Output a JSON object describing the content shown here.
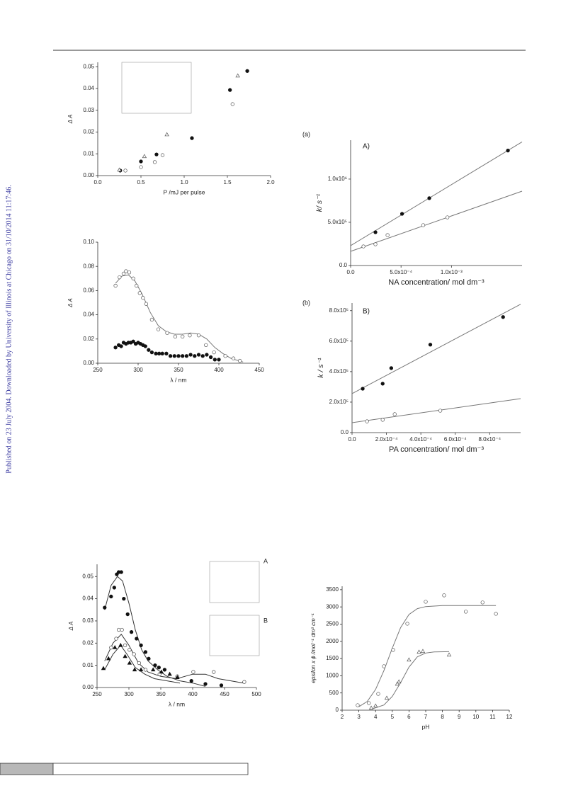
{
  "side_note": "Published on 23 July 2004. Downloaded by University of Illinois at Chicago on 31/10/2014 11:17:46.",
  "chart_data": [
    {
      "type": "scatter",
      "x_label": "P /mJ per pulse",
      "y_label": "Δ A",
      "box": false,
      "xlim": [
        0,
        2.0
      ],
      "ylim": [
        0,
        0.052
      ],
      "xticks": [
        {
          "value": 0,
          "label": "0.0"
        },
        0.5,
        {
          "value": 1,
          "label": "1.0"
        },
        1.5,
        {
          "value": 2,
          "label": "2.0"
        }
      ],
      "yticks": [
        {
          "value": 0,
          "label": "0.00"
        },
        0.01,
        0.02,
        0.03,
        0.04,
        0.05
      ],
      "series": [
        {
          "marker": "filled-circle",
          "color": "#111111",
          "x": [
            0.26,
            0.5,
            0.68,
            1.09,
            1.53,
            1.73
          ],
          "values": [
            0.0023,
            0.0065,
            0.0097,
            0.0172,
            0.0393,
            0.048
          ]
        },
        {
          "marker": "open-circle",
          "color": "#555555",
          "x": [
            0.32,
            0.5,
            0.66,
            0.75,
            1.56
          ],
          "values": [
            0.0023,
            0.0039,
            0.0062,
            0.0094,
            0.0328
          ]
        },
        {
          "marker": "open-triangle",
          "color": "#555555",
          "x": [
            0.25,
            0.54,
            0.8,
            1.62
          ],
          "values": [
            0.0026,
            0.0088,
            0.0188,
            0.0458
          ]
        }
      ]
    },
    {
      "type": "scatter",
      "x_label": "λ / nm",
      "y_label": "Δ A",
      "box": false,
      "xlim": [
        250,
        450
      ],
      "ylim": [
        0,
        0.1
      ],
      "xticks": [
        250,
        300,
        350,
        400,
        450
      ],
      "yticks": [
        {
          "value": 0,
          "label": "0.00"
        },
        0.02,
        0.04,
        0.06,
        0.08,
        {
          "value": 0.1,
          "label": "0.10"
        }
      ],
      "series": [
        {
          "marker": "line",
          "color": "#777777",
          "x": [
            272,
            280,
            288,
            296,
            305,
            315,
            325,
            335,
            345,
            355,
            365,
            375,
            385,
            395,
            405,
            415,
            425,
            430
          ],
          "values": [
            0.066,
            0.072,
            0.073,
            0.068,
            0.057,
            0.042,
            0.031,
            0.026,
            0.024,
            0.024,
            0.025,
            0.024,
            0.02,
            0.013,
            0.008,
            0.004,
            0.002,
            0.001
          ]
        },
        {
          "marker": "open-circle",
          "color": "#555555",
          "x": [
            272,
            277,
            282,
            285,
            289,
            294,
            298,
            302,
            306,
            310,
            317,
            325,
            336,
            346,
            355,
            364,
            375,
            384,
            394,
            408,
            418,
            426
          ],
          "values": [
            0.064,
            0.071,
            0.074,
            0.076,
            0.075,
            0.07,
            0.064,
            0.058,
            0.054,
            0.049,
            0.036,
            0.028,
            0.025,
            0.022,
            0.022,
            0.023,
            0.023,
            0.015,
            0.009,
            0.006,
            0.004,
            0.002
          ]
        },
        {
          "marker": "filled-circle",
          "color": "#111111",
          "x": [
            272,
            276,
            279,
            282,
            285,
            288,
            291,
            294,
            297,
            300,
            303,
            306,
            309,
            313,
            317,
            322,
            326,
            330,
            335,
            340,
            345,
            350,
            355,
            360,
            365,
            370,
            375,
            380,
            385,
            390,
            395,
            400
          ],
          "values": [
            0.013,
            0.015,
            0.014,
            0.017,
            0.016,
            0.017,
            0.017,
            0.018,
            0.016,
            0.017,
            0.016,
            0.015,
            0.014,
            0.011,
            0.009,
            0.008,
            0.008,
            0.008,
            0.008,
            0.006,
            0.006,
            0.006,
            0.006,
            0.006,
            0.007,
            0.006,
            0.007,
            0.006,
            0.007,
            0.005,
            0.003,
            0.003
          ]
        }
      ]
    },
    {
      "type": "scatter",
      "tag": "(a)",
      "panel": "A)",
      "x_label": "NA concentration/ mol dm⁻³",
      "y_label": "k/ s⁻¹",
      "box": false,
      "xlim": [
        0,
        0.0017
      ],
      "ylim": [
        0,
        1450000
      ],
      "xticks": [
        {
          "value": 0,
          "label": "0.0"
        },
        {
          "value": 0.0005,
          "label": "5.0x10⁻⁴"
        },
        {
          "value": 0.001,
          "label": "1.0x10⁻³"
        }
      ],
      "yticks": [
        {
          "value": 0,
          "label": "0.0"
        },
        {
          "value": 500000,
          "label": "5.0x10⁵"
        },
        {
          "value": 1000000,
          "label": "1.0x10⁶"
        }
      ],
      "series": [
        {
          "marker": "line",
          "color": "#777777",
          "x": [
            0,
            0.0017
          ],
          "values": [
            230000,
            1430000
          ]
        },
        {
          "marker": "line",
          "color": "#777777",
          "x": [
            0,
            0.0017
          ],
          "values": [
            164000,
            860000
          ]
        },
        {
          "marker": "filled-circle",
          "color": "#111111",
          "x": [
            0.000246,
            0.00051,
            0.00078,
            0.00156
          ],
          "values": [
            385000,
            598000,
            779000,
            1330000
          ]
        },
        {
          "marker": "open-circle",
          "color": "#555555",
          "x": [
            0.000127,
            0.000246,
            0.000366,
            0.00072,
            0.00096
          ],
          "values": [
            221000,
            246000,
            352000,
            467000,
            557000
          ]
        }
      ]
    },
    {
      "type": "scatter",
      "tag": "(b)",
      "panel": "B)",
      "x_label": "PA concentration/ mol dm⁻³",
      "y_label": "k / s⁻¹",
      "box": false,
      "xlim": [
        0,
        0.00098
      ],
      "ylim": [
        0,
        850000
      ],
      "xticks": [
        {
          "value": 0,
          "label": "0.0"
        },
        {
          "value": 0.0002,
          "label": "2.0x10⁻⁴"
        },
        {
          "value": 0.0004,
          "label": "4.0x10⁻⁴"
        },
        {
          "value": 0.0006,
          "label": "6.0x10⁻⁴"
        },
        {
          "value": 0.0008,
          "label": "8.0x10⁻⁴"
        }
      ],
      "yticks": [
        {
          "value": 0,
          "label": "0.0"
        },
        {
          "value": 200000,
          "label": "2.0x10⁵"
        },
        {
          "value": 400000,
          "label": "4.0x10⁵"
        },
        {
          "value": 600000,
          "label": "6.0x10⁵"
        },
        {
          "value": 800000,
          "label": "8.0x10⁵"
        }
      ],
      "series": [
        {
          "marker": "line",
          "color": "#777777",
          "x": [
            0,
            0.00098
          ],
          "values": [
            256000,
            842000
          ]
        },
        {
          "marker": "line",
          "color": "#777777",
          "x": [
            0,
            0.00098
          ],
          "values": [
            65000,
            223000
          ]
        },
        {
          "marker": "filled-circle",
          "color": "#111111",
          "x": [
            6.2e-05,
            0.000178,
            0.000228,
            0.000455,
            0.000878
          ],
          "values": [
            288000,
            321000,
            423000,
            577000,
            758000
          ]
        },
        {
          "marker": "open-circle",
          "color": "#555555",
          "x": [
            8.7e-05,
            0.000178,
            0.000248,
            0.000513
          ],
          "values": [
            74000,
            84000,
            121000,
            144000
          ]
        }
      ]
    },
    {
      "type": "scatter",
      "x_label": "λ / nm",
      "y_label": "Δ A",
      "box": false,
      "inset_labels": [
        "A",
        "B"
      ],
      "xlim": [
        250,
        500
      ],
      "ylim": [
        0,
        0.0555
      ],
      "xticks": [
        250,
        300,
        350,
        400,
        450,
        500
      ],
      "yticks": [
        {
          "value": 0,
          "label": "0.00"
        },
        0.01,
        0.02,
        0.03,
        0.04,
        0.05
      ],
      "series": [
        {
          "marker": "line",
          "color": "#333333",
          "x": [
            262,
            272,
            282,
            290,
            300,
            310,
            320,
            330,
            345,
            360,
            380,
            400,
            420
          ],
          "values": [
            0.035,
            0.046,
            0.05,
            0.048,
            0.038,
            0.026,
            0.017,
            0.012,
            0.008,
            0.005,
            0.003,
            0.002,
            0.0005
          ]
        },
        {
          "marker": "line",
          "color": "#333333",
          "x": [
            262,
            275,
            288,
            300,
            315,
            330,
            350,
            375,
            400,
            420,
            440,
            460,
            480
          ],
          "values": [
            0.012,
            0.02,
            0.024,
            0.019,
            0.011,
            0.007,
            0.005,
            0.004,
            0.006,
            0.006,
            0.004,
            0.003,
            0.002
          ]
        },
        {
          "marker": "line",
          "color": "#333333",
          "x": [
            262,
            275,
            287,
            297,
            310,
            325,
            340,
            360,
            380
          ],
          "values": [
            0.008,
            0.015,
            0.019,
            0.015,
            0.009,
            0.006,
            0.004,
            0.003,
            0.002
          ]
        },
        {
          "marker": "filled-circle",
          "color": "#111111",
          "x": [
            262,
            272,
            277,
            281,
            284,
            288,
            292,
            298,
            304,
            312,
            319,
            326,
            331,
            341,
            347,
            356,
            376,
            398,
            420,
            445
          ],
          "values": [
            0.036,
            0.041,
            0.045,
            0.051,
            0.052,
            0.052,
            0.04,
            0.033,
            0.025,
            0.022,
            0.019,
            0.016,
            0.013,
            0.01,
            0.009,
            0.008,
            0.005,
            0.003,
            0.0016,
            0.001
          ]
        },
        {
          "marker": "open-circle",
          "color": "#444444",
          "x": [
            272,
            280,
            284,
            289,
            294,
            301,
            308,
            316,
            326,
            348,
            376,
            401,
            433,
            481
          ],
          "values": [
            0.018,
            0.022,
            0.026,
            0.026,
            0.019,
            0.017,
            0.015,
            0.011,
            0.008,
            0.006,
            0.005,
            0.007,
            0.007,
            0.0025
          ]
        },
        {
          "marker": "filled-triangle",
          "color": "#111111",
          "x": [
            260,
            268,
            278,
            287,
            294,
            301,
            309,
            319,
            338,
            351,
            364,
            376
          ],
          "values": [
            0.0086,
            0.013,
            0.018,
            0.019,
            0.014,
            0.011,
            0.008,
            0.008,
            0.008,
            0.007,
            0.006,
            0.0045
          ]
        }
      ]
    },
    {
      "type": "scatter",
      "x_label": "pH",
      "y_label": "epsilon x ϕ /mol⁻¹ dm³ cm⁻¹",
      "box": false,
      "xlim": [
        2,
        12
      ],
      "ylim": [
        0,
        3600
      ],
      "xticks": [
        2,
        3,
        4,
        5,
        6,
        7,
        8,
        9,
        10,
        11,
        12
      ],
      "yticks": [
        0,
        500,
        1000,
        1500,
        2000,
        2500,
        3000,
        3500
      ],
      "series": [
        {
          "marker": "line",
          "color": "#777777",
          "x": [
            3,
            3.5,
            4,
            4.5,
            5,
            5.5,
            6,
            6.5,
            7,
            8,
            11.2
          ],
          "values": [
            100,
            250,
            600,
            1150,
            1800,
            2400,
            2780,
            2950,
            3010,
            3040,
            3040
          ]
        },
        {
          "marker": "line",
          "color": "#777777",
          "x": [
            3.7,
            4.5,
            5,
            5.5,
            6,
            6.5,
            7,
            7.5,
            8.4
          ],
          "values": [
            20,
            150,
            400,
            800,
            1250,
            1550,
            1660,
            1690,
            1700
          ]
        },
        {
          "marker": "open-circle",
          "color": "#555555",
          "x": [
            2.93,
            3.6,
            4.16,
            4.5,
            5.05,
            5.9,
            7.0,
            8.1,
            9.4,
            10.4,
            11.2
          ],
          "values": [
            144,
            206,
            474,
            1276,
            1750,
            2512,
            3150,
            3336,
            2862,
            3130,
            2800
          ]
        },
        {
          "marker": "open-triangle",
          "color": "#555555",
          "x": [
            3.74,
            4.0,
            4.67,
            5.3,
            5.4,
            6.0,
            6.6,
            6.83,
            8.4
          ],
          "values": [
            62,
            124,
            350,
            760,
            824,
            1462,
            1688,
            1709,
            1606
          ]
        }
      ]
    }
  ]
}
